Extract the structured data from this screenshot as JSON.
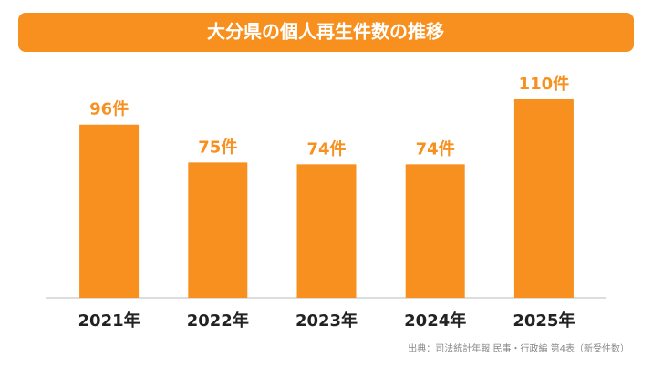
{
  "chart_data": {
    "type": "bar",
    "title": "大分県の個人再生件数の推移",
    "categories": [
      "2021年",
      "2022年",
      "2023年",
      "2024年",
      "2025年"
    ],
    "values": [
      96,
      75,
      74,
      74,
      110
    ],
    "value_labels": [
      "96件",
      "75件",
      "74件",
      "74件",
      "110件"
    ],
    "color": "#f7901e",
    "source": "出典：司法統計年報 民事・行政編 第4表（新受件数）"
  }
}
